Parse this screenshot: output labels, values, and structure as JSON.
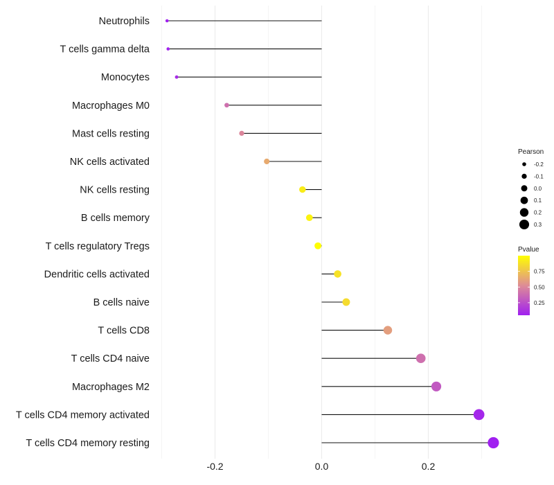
{
  "chart_data": {
    "type": "lollipop",
    "categories": [
      "Neutrophils",
      "T cells gamma delta",
      "Monocytes",
      "Macrophages M0",
      "Mast cells resting",
      "NK cells activated",
      "NK cells resting",
      "B cells memory",
      "T cells regulatory  Tregs ",
      "Dendritic cells activated",
      "B cells naive",
      "T cells CD8",
      "T cells CD4 naive",
      "Macrophages M2",
      "T cells CD4 memory activated",
      "T cells CD4 memory resting"
    ],
    "values": [
      -0.29,
      -0.288,
      -0.272,
      -0.178,
      -0.15,
      -0.103,
      -0.036,
      -0.023,
      -0.007,
      0.03,
      0.046,
      0.124,
      0.186,
      0.215,
      0.295,
      0.322
    ],
    "pvalues": [
      0.05,
      0.06,
      0.1,
      0.4,
      0.5,
      0.65,
      0.92,
      0.95,
      0.99,
      0.88,
      0.85,
      0.6,
      0.4,
      0.3,
      0.08,
      0.05
    ],
    "xlim": [
      -0.3,
      0.345
    ],
    "x_ticks": [
      -0.2,
      0.0,
      0.2
    ],
    "x_tick_labels": [
      "-0.2",
      "0.0",
      "0.2"
    ],
    "grid": true,
    "title": "",
    "xlabel": "",
    "ylabel": "",
    "legend_position": "right",
    "legend_size": {
      "title": "Pearson",
      "values": [
        -0.2,
        -0.1,
        0.0,
        0.1,
        0.2,
        0.3
      ],
      "labels": [
        "-0.2",
        "-0.1",
        "0.0",
        "0.1",
        "0.2",
        "0.3"
      ]
    },
    "legend_color": {
      "title": "Pvalue",
      "range": [
        0.05,
        1.0
      ],
      "ticks": [
        0.75,
        0.5,
        0.25
      ],
      "tick_labels": [
        "0.75",
        "0.50",
        "0.25"
      ],
      "low_color": "#a020f0",
      "high_color": "#ffff00"
    }
  }
}
